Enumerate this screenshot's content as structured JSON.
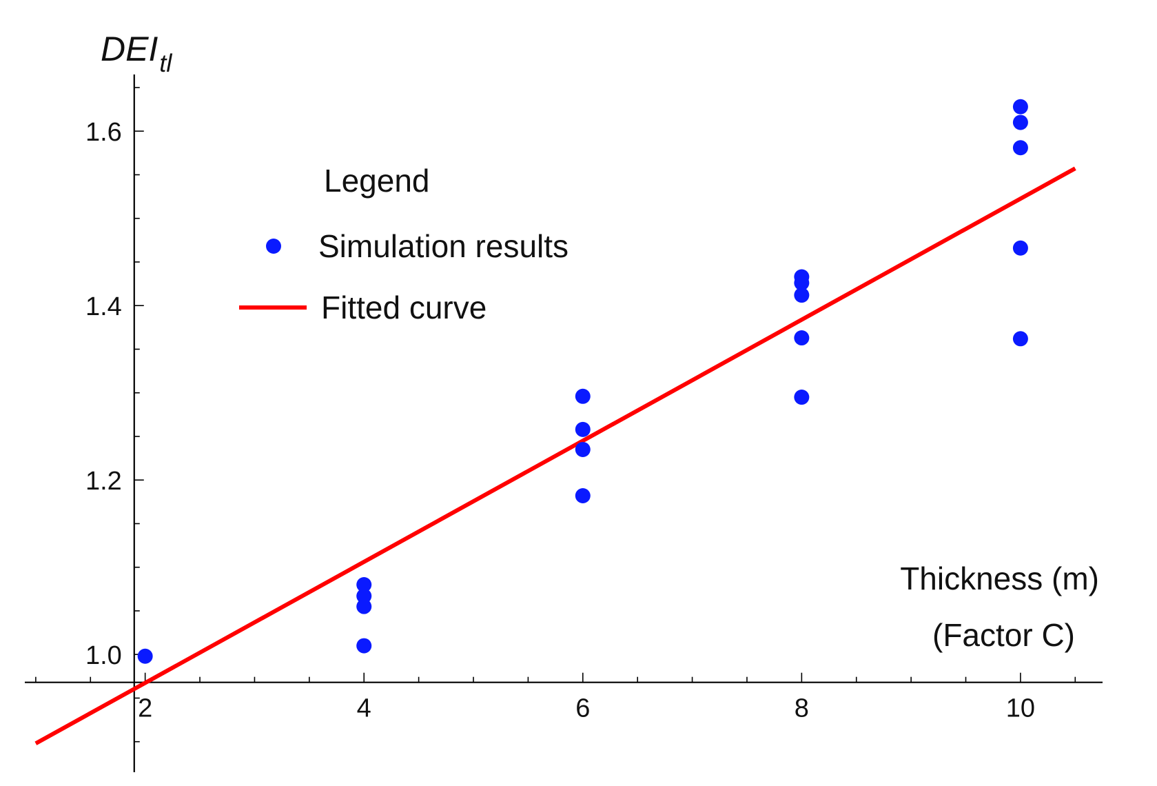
{
  "chart_data": {
    "type": "scatter",
    "title": "",
    "ylabel": {
      "main": "DEI",
      "sub": "tl"
    },
    "xlabel": {
      "line1": "Thickness (m)",
      "line2": "(Factor C)"
    },
    "xlim": [
      0.9,
      10.75
    ],
    "ylim": [
      0.865,
      1.665
    ],
    "axes_origin": {
      "x": 1.9,
      "y": 0.968
    },
    "x_ticks": [
      {
        "value": 2,
        "label": "2"
      },
      {
        "value": 4,
        "label": "4"
      },
      {
        "value": 6,
        "label": "6"
      },
      {
        "value": 8,
        "label": "8"
      },
      {
        "value": 10,
        "label": "10"
      }
    ],
    "y_ticks": [
      {
        "value": 1.0,
        "label": "1.0"
      },
      {
        "value": 1.2,
        "label": "1.2"
      },
      {
        "value": 1.4,
        "label": "1.4"
      },
      {
        "value": 1.6,
        "label": "1.6"
      }
    ],
    "grid": false,
    "legend": {
      "title": "Legend",
      "placement": "top-left",
      "entries": [
        {
          "name": "Simulation results",
          "kind": "marker"
        },
        {
          "name": "Fitted curve",
          "kind": "line"
        }
      ]
    },
    "series": [
      {
        "name": "Simulation results",
        "type": "scatter",
        "color": "#0a1aff",
        "points": [
          {
            "x": 2,
            "y": 0.998
          },
          {
            "x": 4,
            "y": 1.08
          },
          {
            "x": 4,
            "y": 1.067
          },
          {
            "x": 4,
            "y": 1.055
          },
          {
            "x": 4,
            "y": 1.01
          },
          {
            "x": 6,
            "y": 1.296
          },
          {
            "x": 6,
            "y": 1.258
          },
          {
            "x": 6,
            "y": 1.235
          },
          {
            "x": 6,
            "y": 1.182
          },
          {
            "x": 8,
            "y": 1.433
          },
          {
            "x": 8,
            "y": 1.426
          },
          {
            "x": 8,
            "y": 1.412
          },
          {
            "x": 8,
            "y": 1.363
          },
          {
            "x": 8,
            "y": 1.295
          },
          {
            "x": 10,
            "y": 1.628
          },
          {
            "x": 10,
            "y": 1.61
          },
          {
            "x": 10,
            "y": 1.581
          },
          {
            "x": 10,
            "y": 1.466
          },
          {
            "x": 10,
            "y": 1.362
          }
        ]
      },
      {
        "name": "Fitted curve",
        "type": "line",
        "color": "#ff0000",
        "points": [
          {
            "x": 1.0,
            "y": 0.898
          },
          {
            "x": 11.0,
            "y": 1.592
          }
        ]
      }
    ]
  }
}
